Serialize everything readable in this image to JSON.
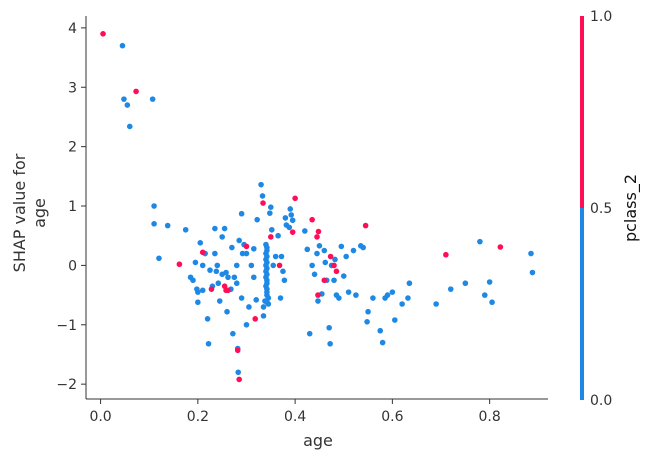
{
  "chart_data": {
    "type": "scatter",
    "xlabel": "age",
    "ylabel_lines": [
      "SHAP value for",
      "age"
    ],
    "xlim": [
      -0.03,
      0.92
    ],
    "ylim": [
      -2.25,
      4.2
    ],
    "xticks": [
      0.0,
      0.2,
      0.4,
      0.6,
      0.8
    ],
    "xtick_labels": [
      "0.0",
      "0.2",
      "0.4",
      "0.6",
      "0.8"
    ],
    "yticks": [
      -2,
      -1,
      0,
      1,
      2,
      3,
      4
    ],
    "ytick_labels": [
      "−2",
      "−1",
      "0",
      "1",
      "2",
      "3",
      "4"
    ],
    "grid": false,
    "colors": {
      "class_0": "#1e88e5",
      "class_1": "#ff0d57",
      "axis": "#333333"
    },
    "colorbar": {
      "label": "pclass_2",
      "ticks": [
        0.0,
        0.5,
        1.0
      ],
      "tick_labels": [
        "0.0",
        "0.5",
        "1.0"
      ]
    },
    "series": [
      {
        "color_value": 0,
        "points": [
          [
            0.045,
            3.7
          ],
          [
            0.048,
            2.8
          ],
          [
            0.055,
            2.7
          ],
          [
            0.06,
            2.34
          ],
          [
            0.107,
            2.8
          ],
          [
            0.11,
            1.0
          ],
          [
            0.11,
            0.7
          ],
          [
            0.12,
            0.12
          ],
          [
            0.138,
            0.67
          ],
          [
            0.175,
            0.6
          ],
          [
            0.185,
            -0.2
          ],
          [
            0.19,
            -0.25
          ],
          [
            0.195,
            0.05
          ],
          [
            0.198,
            -0.4
          ],
          [
            0.2,
            -0.45
          ],
          [
            0.2,
            -0.62
          ],
          [
            0.205,
            0.38
          ],
          [
            0.21,
            -0.42
          ],
          [
            0.21,
            0.0
          ],
          [
            0.215,
            0.2
          ],
          [
            0.22,
            -0.9
          ],
          [
            0.222,
            -1.32
          ],
          [
            0.225,
            -0.08
          ],
          [
            0.23,
            -0.35
          ],
          [
            0.235,
            0.62
          ],
          [
            0.235,
            0.2
          ],
          [
            0.238,
            -0.1
          ],
          [
            0.24,
            0.0
          ],
          [
            0.242,
            -0.3
          ],
          [
            0.245,
            -0.6
          ],
          [
            0.25,
            0.48
          ],
          [
            0.25,
            -0.15
          ],
          [
            0.255,
            0.62
          ],
          [
            0.258,
            -0.12
          ],
          [
            0.262,
            -0.2
          ],
          [
            0.26,
            -0.78
          ],
          [
            0.268,
            -0.4
          ],
          [
            0.27,
            0.3
          ],
          [
            0.272,
            -1.15
          ],
          [
            0.275,
            -0.2
          ],
          [
            0.28,
            0.0
          ],
          [
            0.28,
            -0.3
          ],
          [
            0.282,
            -1.4
          ],
          [
            0.283,
            -1.8
          ],
          [
            0.285,
            0.42
          ],
          [
            0.29,
            -0.55
          ],
          [
            0.29,
            0.87
          ],
          [
            0.292,
            0.2
          ],
          [
            0.295,
            0.35
          ],
          [
            0.3,
            -1.0
          ],
          [
            0.3,
            0.2
          ],
          [
            0.305,
            -0.7
          ],
          [
            0.31,
            0.0
          ],
          [
            0.315,
            0.28
          ],
          [
            0.315,
            -0.2
          ],
          [
            0.32,
            -0.58
          ],
          [
            0.322,
            0.77
          ],
          [
            0.33,
            1.36
          ],
          [
            0.333,
            1.17
          ],
          [
            0.335,
            -0.7
          ],
          [
            0.335,
            -0.85
          ],
          [
            0.338,
            -0.6
          ],
          [
            0.34,
            0.0
          ],
          [
            0.34,
            0.35
          ],
          [
            0.34,
            -0.35
          ],
          [
            0.34,
            0.1
          ],
          [
            0.34,
            -0.1
          ],
          [
            0.34,
            0.2
          ],
          [
            0.34,
            -0.2
          ],
          [
            0.342,
            0.05
          ],
          [
            0.342,
            -0.05
          ],
          [
            0.342,
            0.15
          ],
          [
            0.342,
            -0.15
          ],
          [
            0.342,
            0.25
          ],
          [
            0.342,
            -0.25
          ],
          [
            0.342,
            0.3
          ],
          [
            0.342,
            -0.3
          ],
          [
            0.342,
            -0.4
          ],
          [
            0.342,
            -0.45
          ],
          [
            0.342,
            -0.5
          ],
          [
            0.342,
            -0.62
          ],
          [
            0.345,
            -0.55
          ],
          [
            0.345,
            -0.65
          ],
          [
            0.348,
            0.88
          ],
          [
            0.35,
            0.98
          ],
          [
            0.352,
            0.6
          ],
          [
            0.355,
            0.0
          ],
          [
            0.36,
            0.15
          ],
          [
            0.365,
            0.5
          ],
          [
            0.37,
            -0.55
          ],
          [
            0.372,
            0.15
          ],
          [
            0.375,
            -0.1
          ],
          [
            0.378,
            -0.25
          ],
          [
            0.38,
            0.8
          ],
          [
            0.382,
            0.68
          ],
          [
            0.388,
            0.64
          ],
          [
            0.39,
            0.95
          ],
          [
            0.392,
            0.85
          ],
          [
            0.395,
            0.76
          ],
          [
            0.42,
            0.58
          ],
          [
            0.425,
            0.27
          ],
          [
            0.43,
            -1.15
          ],
          [
            0.435,
            0.0
          ],
          [
            0.44,
            -0.15
          ],
          [
            0.445,
            0.2
          ],
          [
            0.447,
            -0.6
          ],
          [
            0.45,
            0.33
          ],
          [
            0.455,
            -0.48
          ],
          [
            0.46,
            0.25
          ],
          [
            0.462,
            0.05
          ],
          [
            0.465,
            -0.25
          ],
          [
            0.47,
            -1.05
          ],
          [
            0.472,
            -1.32
          ],
          [
            0.475,
            0.0
          ],
          [
            0.48,
            -0.25
          ],
          [
            0.482,
            0.1
          ],
          [
            0.485,
            -0.5
          ],
          [
            0.49,
            -0.55
          ],
          [
            0.495,
            0.32
          ],
          [
            0.5,
            -0.18
          ],
          [
            0.505,
            0.15
          ],
          [
            0.51,
            -0.45
          ],
          [
            0.52,
            0.25
          ],
          [
            0.525,
            -0.5
          ],
          [
            0.535,
            0.33
          ],
          [
            0.54,
            0.3
          ],
          [
            0.548,
            -0.95
          ],
          [
            0.55,
            -0.78
          ],
          [
            0.56,
            -0.55
          ],
          [
            0.575,
            -1.1
          ],
          [
            0.58,
            -1.3
          ],
          [
            0.585,
            -0.55
          ],
          [
            0.59,
            -0.5
          ],
          [
            0.6,
            -0.45
          ],
          [
            0.605,
            -0.92
          ],
          [
            0.62,
            -0.65
          ],
          [
            0.632,
            -0.55
          ],
          [
            0.635,
            -0.3
          ],
          [
            0.69,
            -0.65
          ],
          [
            0.72,
            -0.4
          ],
          [
            0.75,
            -0.3
          ],
          [
            0.78,
            0.4
          ],
          [
            0.79,
            -0.5
          ],
          [
            0.8,
            -0.28
          ],
          [
            0.805,
            -0.62
          ],
          [
            0.885,
            0.2
          ],
          [
            0.888,
            -0.12
          ]
        ]
      },
      {
        "color_value": 1,
        "points": [
          [
            0.005,
            3.9
          ],
          [
            0.073,
            2.93
          ],
          [
            0.162,
            0.02
          ],
          [
            0.21,
            0.22
          ],
          [
            0.228,
            -0.4
          ],
          [
            0.255,
            -0.35
          ],
          [
            0.258,
            -0.42
          ],
          [
            0.262,
            -0.42
          ],
          [
            0.282,
            -1.43
          ],
          [
            0.285,
            -1.92
          ],
          [
            0.3,
            0.32
          ],
          [
            0.318,
            -0.9
          ],
          [
            0.334,
            1.05
          ],
          [
            0.35,
            0.48
          ],
          [
            0.368,
            0.0
          ],
          [
            0.395,
            0.56
          ],
          [
            0.4,
            1.13
          ],
          [
            0.435,
            0.77
          ],
          [
            0.445,
            0.48
          ],
          [
            0.447,
            -0.5
          ],
          [
            0.448,
            0.57
          ],
          [
            0.46,
            -0.25
          ],
          [
            0.473,
            0.15
          ],
          [
            0.48,
            0.0
          ],
          [
            0.485,
            -0.1
          ],
          [
            0.545,
            0.67
          ],
          [
            0.71,
            0.18
          ],
          [
            0.822,
            0.31
          ]
        ]
      }
    ]
  }
}
